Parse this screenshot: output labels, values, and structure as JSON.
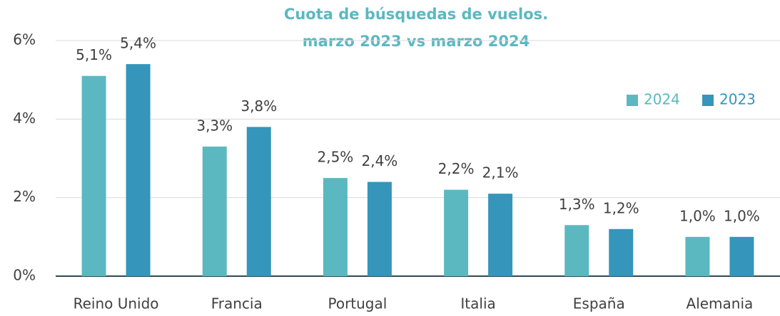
{
  "chart_data": {
    "type": "bar",
    "title": "Cuota de búsquedas de vuelos.",
    "subtitle": "marzo 2023 vs marzo 2024",
    "categories": [
      "Reino Unido",
      "Francia",
      "Portugal",
      "Italia",
      "España",
      "Alemania"
    ],
    "series": [
      {
        "name": "2024",
        "color": "#5bb8c1",
        "values": [
          5.1,
          3.3,
          2.5,
          2.2,
          1.3,
          1.0
        ],
        "value_labels": [
          "5,1%",
          "3,3%",
          "2,5%",
          "2,2%",
          "1,3%",
          "1,0%"
        ]
      },
      {
        "name": "2023",
        "color": "#3595bb",
        "values": [
          5.4,
          3.8,
          2.4,
          2.1,
          1.2,
          1.0
        ],
        "value_labels": [
          "5,4%",
          "3,8%",
          "2,4%",
          "2,1%",
          "1,2%",
          "1,0%"
        ]
      }
    ],
    "ylim": [
      0,
      6
    ],
    "yticks": [
      {
        "value": 0,
        "label": "0%"
      },
      {
        "value": 2,
        "label": "2%"
      },
      {
        "value": 4,
        "label": "4%"
      },
      {
        "value": 6,
        "label": "6%"
      }
    ],
    "grid": true,
    "legend": "top-right"
  }
}
